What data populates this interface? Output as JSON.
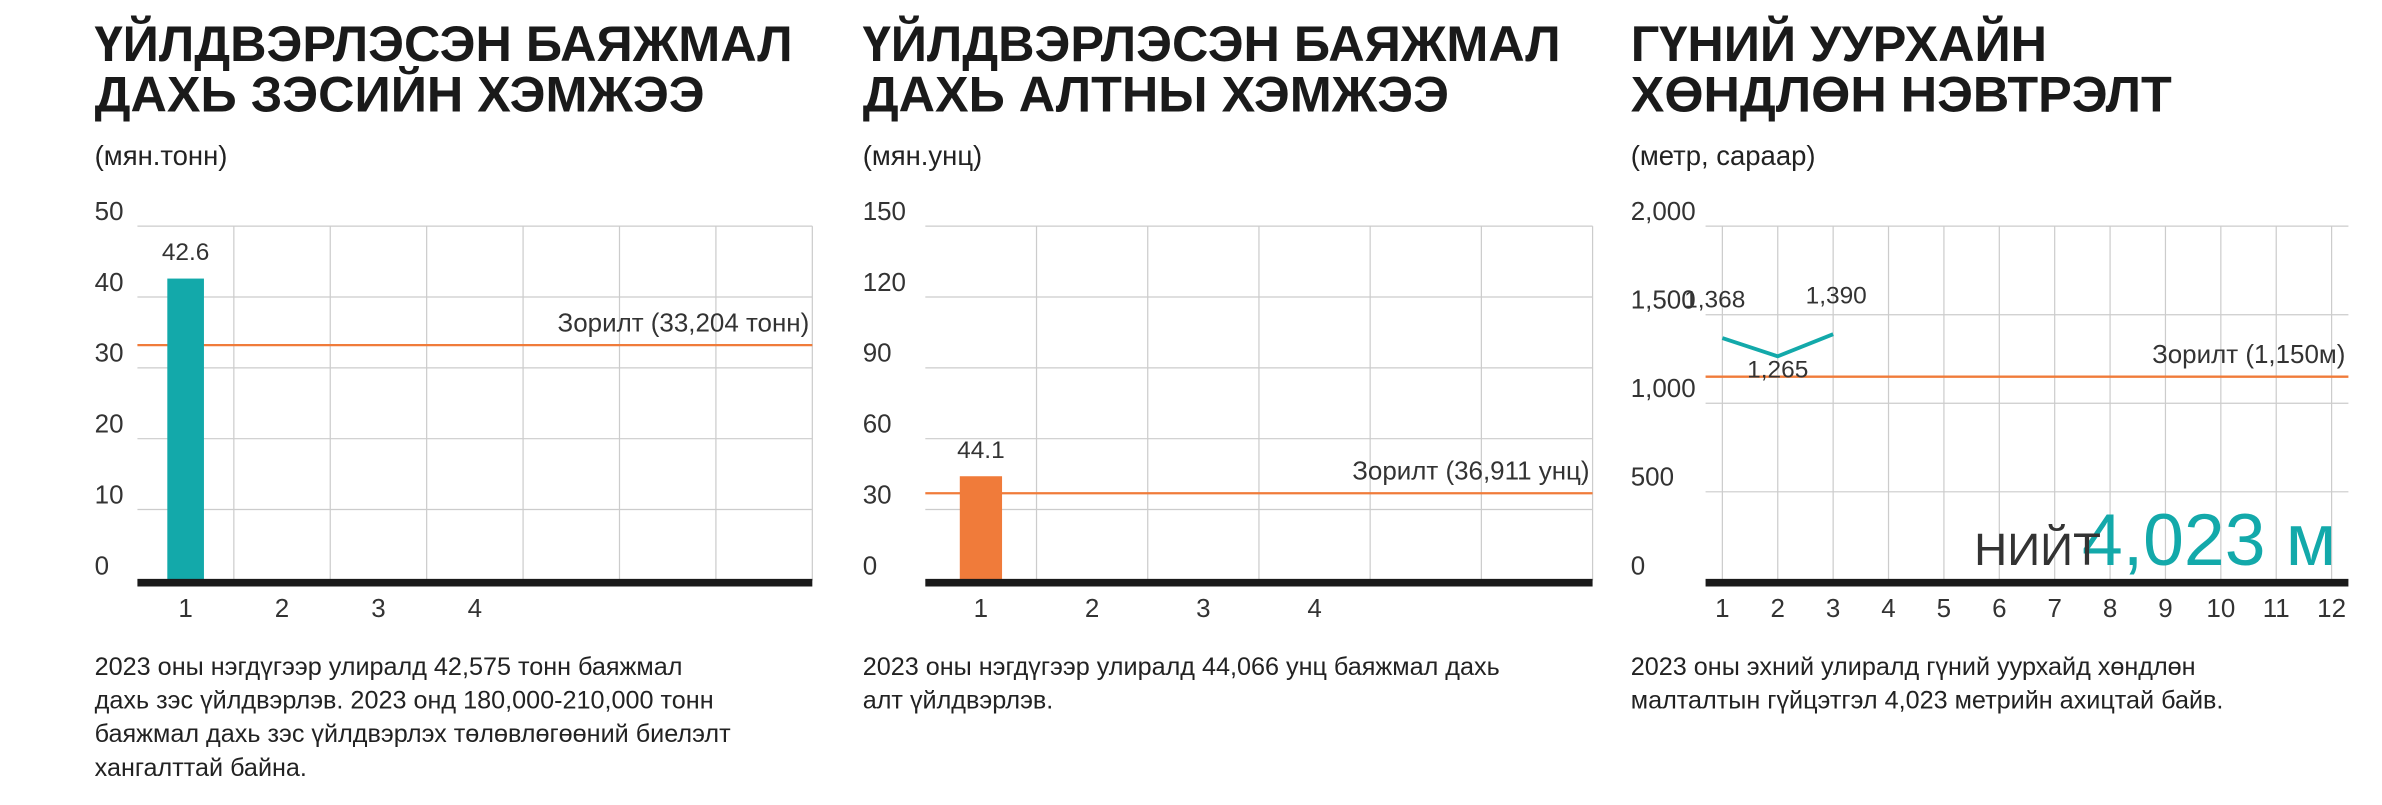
{
  "chart_data": [
    {
      "type": "bar",
      "title": [
        "ҮЙЛДВЭРЛЭСЭН БАЯЖМАЛ",
        "ДАХЬ ЗЭСИЙН ХЭМЖЭЭ"
      ],
      "subtitle": "(мян.тонн)",
      "categories": [
        "1",
        "2",
        "3",
        "4",
        null,
        null,
        null
      ],
      "values": [
        42.6,
        null,
        null,
        null,
        null,
        null,
        null
      ],
      "color": "#13a9aa",
      "ylim": [
        0,
        50
      ],
      "yticks": [
        0,
        10,
        20,
        30,
        40,
        50
      ],
      "grid": true,
      "target": {
        "value": 33.204,
        "label": "Зорилт (33,204 тонн)",
        "color": "#f07b3a"
      },
      "description": [
        "2023 оны нэгдүгээр улиралд 42,575 тонн баяжмал",
        "дахь зэс үйлдвэрлэв. 2023 онд 180,000-210,000 тонн",
        "баяжмал дахь зэс үйлдвэрлэх төлөвлөгөөний биелэлт",
        "хангалттай байна."
      ]
    },
    {
      "type": "bar",
      "title": [
        "ҮЙЛДВЭРЛЭСЭН БАЯЖМАЛ",
        "ДАХЬ АЛТНЫ ХЭМЖЭЭ"
      ],
      "subtitle": "(мян.унц)",
      "categories": [
        "1",
        "2",
        "3",
        "4",
        null,
        null
      ],
      "values": [
        44.1,
        null,
        null,
        null,
        null,
        null
      ],
      "color": "#f07b3a",
      "ylim": [
        0,
        150
      ],
      "yticks": [
        0,
        30,
        60,
        90,
        120,
        150
      ],
      "grid": true,
      "target": {
        "value": 36.911,
        "label": "Зорилт (36,911 унц)",
        "color": "#f07b3a"
      },
      "description": [
        "2023 оны нэгдүгээр улиралд 44,066 унц баяжмал дахь",
        "алт үйлдвэрлэв."
      ]
    },
    {
      "type": "line",
      "title": [
        "ГҮНИЙ УУРХАЙН",
        "ХӨНДЛӨН НЭВТРЭЛТ"
      ],
      "subtitle": "(метр, сараар)",
      "categories": [
        "1",
        "2",
        "3",
        "4",
        "5",
        "6",
        "7",
        "8",
        "9",
        "10",
        "11",
        "12"
      ],
      "values": [
        1368,
        1265,
        1390,
        null,
        null,
        null,
        null,
        null,
        null,
        null,
        null,
        null
      ],
      "value_labels": [
        "1,368",
        "1,265",
        "1,390",
        null,
        null,
        null,
        null,
        null,
        null,
        null,
        null,
        null
      ],
      "color": "#13a9aa",
      "ylim": [
        0,
        2000
      ],
      "yticks": [
        0,
        500,
        {
          "value": 1000,
          "label": "1,000"
        },
        {
          "value": 1500,
          "label": "1,500"
        },
        {
          "value": 2000,
          "label": "2,000"
        }
      ],
      "grid": true,
      "target": {
        "value": 1150,
        "label": "Зорилт (1,150м)",
        "color": "#f07b3a"
      },
      "annotation": {
        "prefix": "НИЙТ",
        "total": "4,023 м"
      },
      "description": [
        "2023 оны эхний улиралд гүний уурхайд хөндлөн",
        "малталтын гүйцэтгэл 4,023 метрийн ахицтай байв."
      ]
    }
  ]
}
